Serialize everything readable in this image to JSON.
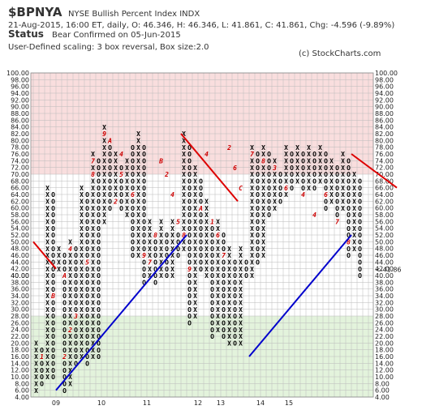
{
  "header": {
    "symbol": "$BPNYA",
    "description": "NYSE Bullish Percent Index  INDX",
    "quote_line": "21-Aug-2015, 16:00 ET, daily, O: 46.346, H: 46.346, L: 41.861, C: 41.861, Chg: -4.596 (-9.89%)",
    "status_label": "Status",
    "status_text": "Bear Confirmed on 05-Jun-2015",
    "scaling_line": "User-Defined scaling: 3 box reversal, Box size:2.0",
    "copyright": "(c) StockCharts.com"
  },
  "colors": {
    "x_mark": "#000000",
    "o_mark": "#000000",
    "month_mark": "#cc0000",
    "trend_bull": "#0000cc",
    "trend_bear": "#dd0000",
    "zone_high": "#f9dede",
    "zone_low": "#e3f3dc",
    "grid": "#bbbbbb"
  },
  "chart_data": {
    "type": "point-and-figure",
    "ylim": [
      4,
      100
    ],
    "box_size": 2,
    "reversal": 3,
    "y_ticks": [
      "4.00",
      "6.00",
      "8.00",
      "10.00",
      "12.00",
      "14.00",
      "16.00",
      "18.00",
      "20.00",
      "22.00",
      "24.00",
      "26.00",
      "28.00",
      "30.00",
      "32.00",
      "34.00",
      "36.00",
      "38.00",
      "40.00",
      "42.00",
      "44.00",
      "46.00",
      "48.00",
      "50.00",
      "52.00",
      "54.00",
      "56.00",
      "58.00",
      "60.00",
      "62.00",
      "64.00",
      "66.00",
      "68.00",
      "70.00",
      "72.00",
      "74.00",
      "76.00",
      "78.00",
      "80.00",
      "82.00",
      "84.00",
      "86.00",
      "88.00",
      "90.00",
      "92.00",
      "94.00",
      "96.00",
      "98.00",
      "100.00"
    ],
    "x_labels": [
      {
        "label": "09",
        "col": 4
      },
      {
        "label": "10",
        "col": 12
      },
      {
        "label": "11",
        "col": 20
      },
      {
        "label": "12",
        "col": 29
      },
      {
        "label": "13",
        "col": 33
      },
      {
        "label": "14",
        "col": 40
      },
      {
        "label": "15",
        "col": 45
      }
    ],
    "zones": [
      {
        "from": 70,
        "to": 100,
        "name": "high"
      },
      {
        "from": 4,
        "to": 28,
        "name": "low"
      }
    ],
    "last_value_label": "<-41.86",
    "left_value_label": "40.00",
    "columns": [
      {
        "type": "X",
        "low": 6,
        "high": 20
      },
      {
        "type": "O",
        "low": 8,
        "high": 18
      },
      {
        "type": "X",
        "low": 10,
        "high": 66
      },
      {
        "type": "O",
        "low": 10,
        "high": 64
      },
      {
        "type": "X",
        "low": 42,
        "high": 48
      },
      {
        "type": "O",
        "low": 6,
        "high": 46
      },
      {
        "type": "X",
        "low": 8,
        "high": 50
      },
      {
        "type": "O",
        "low": 14,
        "high": 48
      },
      {
        "type": "X",
        "low": 16,
        "high": 66
      },
      {
        "type": "O",
        "low": 14,
        "high": 64
      },
      {
        "type": "X",
        "low": 16,
        "high": 76
      },
      {
        "type": "O",
        "low": 16,
        "high": 74
      },
      {
        "type": "X",
        "low": 56,
        "high": 84
      },
      {
        "type": "O",
        "low": 60,
        "high": 80
      },
      {
        "type": "X",
        "low": 62,
        "high": 76
      },
      {
        "type": "O",
        "low": 60,
        "high": 72
      },
      {
        "type": "X",
        "low": 58,
        "high": 74
      },
      {
        "type": "O",
        "low": 46,
        "high": 78
      },
      {
        "type": "X",
        "low": 46,
        "high": 82
      },
      {
        "type": "O",
        "low": 38,
        "high": 78
      },
      {
        "type": "X",
        "low": 40,
        "high": 56
      },
      {
        "type": "O",
        "low": 38,
        "high": 52
      },
      {
        "type": "X",
        "low": 40,
        "high": 56
      },
      {
        "type": "O",
        "low": 40,
        "high": 52
      },
      {
        "type": "X",
        "low": 40,
        "high": 56
      },
      {
        "type": "O",
        "low": 46,
        "high": 52
      },
      {
        "type": "X",
        "low": 48,
        "high": 82
      },
      {
        "type": "O",
        "low": 26,
        "high": 78
      },
      {
        "type": "X",
        "low": 28,
        "high": 72
      },
      {
        "type": "O",
        "low": 42,
        "high": 68
      },
      {
        "type": "X",
        "low": 40,
        "high": 62
      },
      {
        "type": "O",
        "low": 22,
        "high": 54
      },
      {
        "type": "X",
        "low": 24,
        "high": 56
      },
      {
        "type": "O",
        "low": 22,
        "high": 52
      },
      {
        "type": "X",
        "low": 20,
        "high": 48
      },
      {
        "type": "O",
        "low": 20,
        "high": 44
      },
      {
        "type": "X",
        "low": 20,
        "high": 48
      },
      {
        "type": "O",
        "low": 40,
        "high": 44
      },
      {
        "type": "X",
        "low": 40,
        "high": 78
      },
      {
        "type": "O",
        "low": 44,
        "high": 76
      },
      {
        "type": "X",
        "low": 46,
        "high": 78
      },
      {
        "type": "O",
        "low": 58,
        "high": 76
      },
      {
        "type": "X",
        "low": 60,
        "high": 74
      },
      {
        "type": "O",
        "low": 62,
        "high": 70
      },
      {
        "type": "X",
        "low": 64,
        "high": 78
      },
      {
        "type": "O",
        "low": 66,
        "high": 76
      },
      {
        "type": "X",
        "low": 68,
        "high": 78
      },
      {
        "type": "O",
        "low": 64,
        "high": 76
      },
      {
        "type": "X",
        "low": 66,
        "high": 78
      },
      {
        "type": "O",
        "low": 66,
        "high": 76
      },
      {
        "type": "X",
        "low": 68,
        "high": 78
      },
      {
        "type": "O",
        "low": 60,
        "high": 76
      },
      {
        "type": "X",
        "low": 62,
        "high": 74
      },
      {
        "type": "O",
        "low": 58,
        "high": 72
      },
      {
        "type": "X",
        "low": 60,
        "high": 76
      },
      {
        "type": "O",
        "low": 46,
        "high": 74
      },
      {
        "type": "X",
        "low": 48,
        "high": 70
      },
      {
        "type": "O",
        "low": 40,
        "high": 68
      }
    ],
    "month_marks": [
      {
        "c": 1,
        "v": 16,
        "t": "1"
      },
      {
        "c": 3,
        "v": 34,
        "t": "B"
      },
      {
        "c": 5,
        "v": 16,
        "t": "2"
      },
      {
        "c": 5,
        "v": 40,
        "t": "A"
      },
      {
        "c": 6,
        "v": 24,
        "t": "2"
      },
      {
        "c": 6,
        "v": 48,
        "t": "4"
      },
      {
        "c": 7,
        "v": 28,
        "t": "3"
      },
      {
        "c": 9,
        "v": 44,
        "t": "5"
      },
      {
        "c": 10,
        "v": 74,
        "t": "7"
      },
      {
        "c": 10,
        "v": 70,
        "t": "8"
      },
      {
        "c": 12,
        "v": 82,
        "t": "9"
      },
      {
        "c": 13,
        "v": 80,
        "t": "A"
      },
      {
        "c": 14,
        "v": 62,
        "t": "2"
      },
      {
        "c": 15,
        "v": 76,
        "t": "4"
      },
      {
        "c": 15,
        "v": 70,
        "t": "5"
      },
      {
        "c": 17,
        "v": 64,
        "t": "6"
      },
      {
        "c": 19,
        "v": 46,
        "t": "9"
      },
      {
        "c": 20,
        "v": 44,
        "t": "7"
      },
      {
        "c": 21,
        "v": 52,
        "t": "8"
      },
      {
        "c": 22,
        "v": 74,
        "t": "B"
      },
      {
        "c": 23,
        "v": 70,
        "t": "2"
      },
      {
        "c": 24,
        "v": 64,
        "t": "4"
      },
      {
        "c": 25,
        "v": 56,
        "t": "5"
      },
      {
        "c": 26,
        "v": 52,
        "t": "8"
      },
      {
        "c": 27,
        "v": 42,
        "t": "9"
      },
      {
        "c": 29,
        "v": 60,
        "t": "A"
      },
      {
        "c": 30,
        "v": 76,
        "t": "4"
      },
      {
        "c": 31,
        "v": 56,
        "t": "1"
      },
      {
        "c": 32,
        "v": 52,
        "t": "6"
      },
      {
        "c": 33,
        "v": 46,
        "t": "7"
      },
      {
        "c": 34,
        "v": 78,
        "t": "2"
      },
      {
        "c": 35,
        "v": 72,
        "t": "6"
      },
      {
        "c": 36,
        "v": 66,
        "t": "C"
      },
      {
        "c": 38,
        "v": 76,
        "t": "7"
      },
      {
        "c": 40,
        "v": 74,
        "t": "8"
      },
      {
        "c": 42,
        "v": 72,
        "t": "3"
      },
      {
        "c": 44,
        "v": 66,
        "t": "6"
      },
      {
        "c": 47,
        "v": 64,
        "t": "4"
      },
      {
        "c": 49,
        "v": 58,
        "t": "4"
      },
      {
        "c": 51,
        "v": 64,
        "t": "6"
      },
      {
        "c": 53,
        "v": 56,
        "t": "7"
      },
      {
        "c": 55,
        "v": 50,
        "t": "8"
      }
    ],
    "trendlines": [
      {
        "kind": "bear",
        "from": {
          "c": 0,
          "v": 50
        },
        "to": {
          "c": 4,
          "v": 42
        }
      },
      {
        "kind": "bull",
        "from": {
          "c": 4,
          "v": 6
        },
        "to": {
          "c": 27,
          "v": 52
        }
      },
      {
        "kind": "bear",
        "from": {
          "c": 26,
          "v": 82
        },
        "to": {
          "c": 36,
          "v": 62
        }
      },
      {
        "kind": "bull",
        "from": {
          "c": 38,
          "v": 16
        },
        "to": {
          "c": 56,
          "v": 52
        }
      },
      {
        "kind": "bear",
        "from": {
          "c": 56,
          "v": 76
        },
        "to": {
          "c": 64,
          "v": 66
        }
      }
    ]
  }
}
